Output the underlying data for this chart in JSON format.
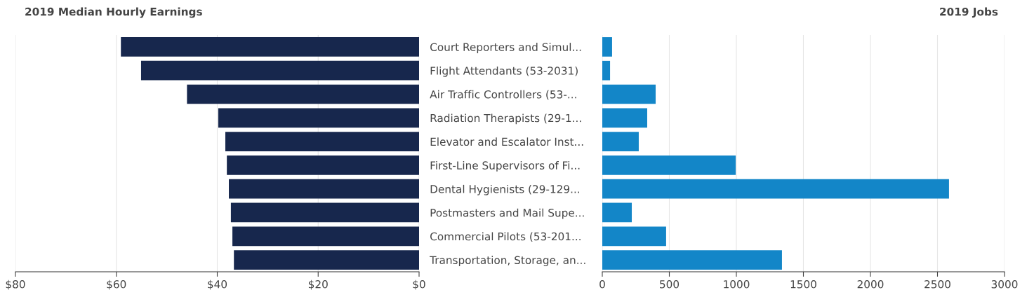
{
  "chart_data": [
    {
      "type": "bar",
      "orientation": "horizontal",
      "title": "2019 Median Hourly Earnings",
      "categories": [
        null,
        null,
        null,
        null,
        null,
        null,
        null,
        null,
        null,
        null
      ],
      "values": [
        59.1,
        55.1,
        46.0,
        39.8,
        38.4,
        38.1,
        37.7,
        37.3,
        37.0,
        36.7
      ],
      "color": "#17274d",
      "xlim": [
        80,
        0
      ],
      "xticks": [
        {
          "value": 80,
          "label": "$80"
        },
        {
          "value": 60,
          "label": "$60"
        },
        {
          "value": 40,
          "label": "$40"
        },
        {
          "value": 20,
          "label": "$20"
        },
        {
          "value": 0,
          "label": "$0"
        }
      ],
      "grid": "x",
      "tick_labels": "x"
    },
    {
      "type": "bar",
      "orientation": "horizontal",
      "title": "2019 Jobs",
      "categories": [
        "Court Reporters and Simul...",
        "Flight Attendants (53-2031)",
        "Air Traffic Controllers (53-...",
        "Radiation Therapists (29-1...",
        "Elevator and Escalator Inst...",
        "First-Line Supervisors of Fi...",
        "Dental Hygienists (29-129...",
        "Postmasters and Mail Supe...",
        "Commercial Pilots (53-201...",
        "Transportation, Storage, an..."
      ],
      "values": [
        73,
        58,
        398,
        335,
        272,
        995,
        2586,
        220,
        476,
        1340
      ],
      "color": "#1386c8",
      "xlim": [
        0,
        3000
      ],
      "xticks": [
        0,
        500,
        1000,
        1500,
        2000,
        2500,
        3000
      ],
      "grid": "x"
    }
  ]
}
